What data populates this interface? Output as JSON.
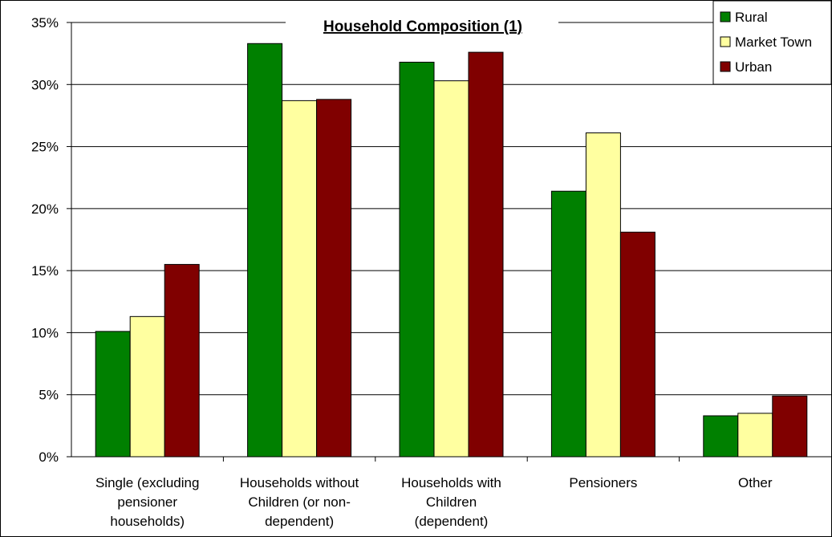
{
  "chart_data": {
    "type": "bar",
    "title": "Household Composition (1)",
    "xlabel": "",
    "ylabel": "",
    "categories": [
      [
        "Single (excluding",
        "pensioner",
        "households)"
      ],
      [
        "Households without",
        "Children (or non-",
        "dependent)"
      ],
      [
        "Households with",
        "Children",
        "(dependent)"
      ],
      [
        "Pensioners"
      ],
      [
        "Other"
      ]
    ],
    "series": [
      {
        "name": "Rural",
        "color": "#008000",
        "values": [
          10.1,
          33.3,
          31.8,
          21.4,
          3.3
        ]
      },
      {
        "name": "Market Town",
        "color": "#ffffa0",
        "values": [
          11.3,
          28.7,
          30.3,
          26.1,
          3.5
        ]
      },
      {
        "name": "Urban",
        "color": "#800000",
        "values": [
          15.5,
          28.8,
          32.6,
          18.1,
          4.9
        ]
      }
    ],
    "ylim": [
      0,
      35
    ],
    "ytick_step": 5,
    "ytick_suffix": "%",
    "grid": true,
    "legend_position": "top-right"
  }
}
